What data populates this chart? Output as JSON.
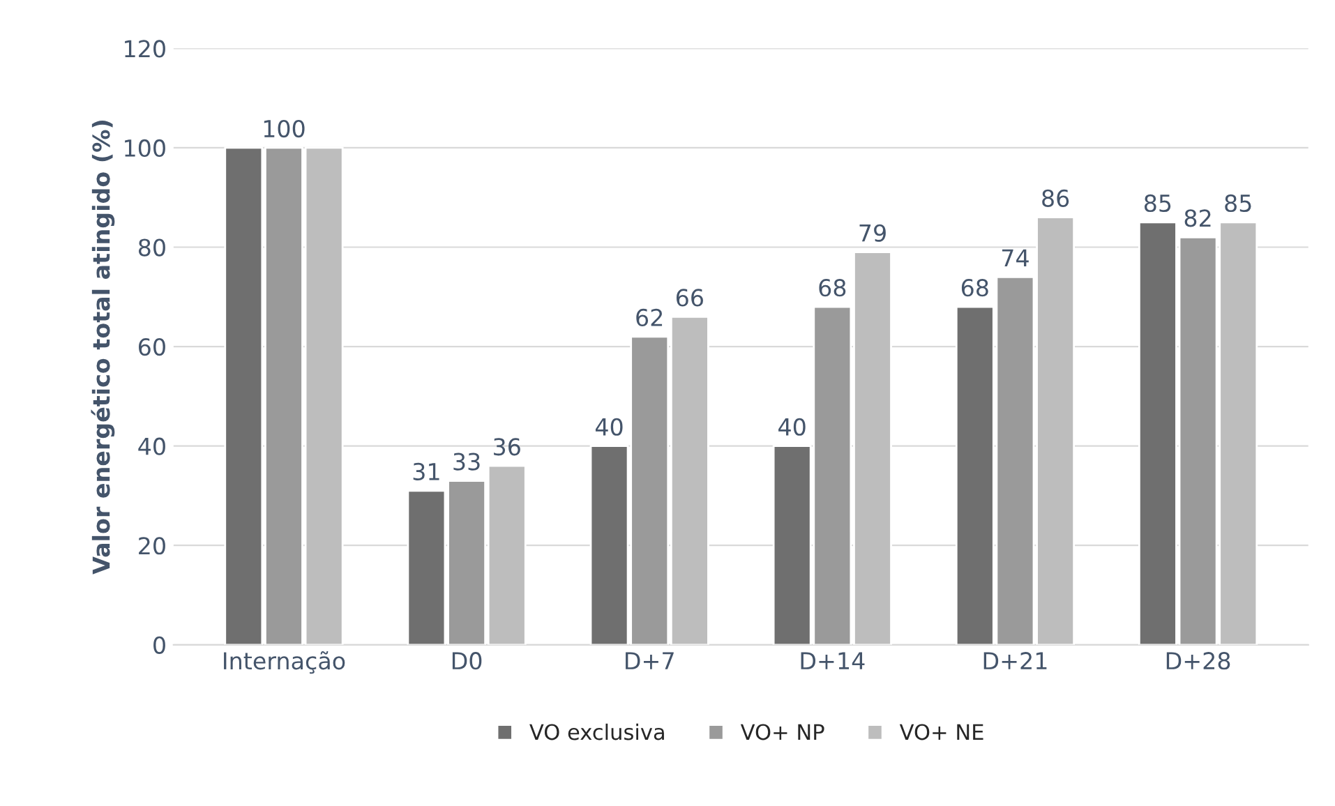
{
  "chart_data": {
    "type": "bar",
    "ylabel": "Valor energético total atingido (%)",
    "categories": [
      "Internação",
      "D0",
      "D+7",
      "D+14",
      "D+21",
      "D+28"
    ],
    "series": [
      {
        "name": "VO exclusiva",
        "color": "#6f6f6f",
        "values": [
          100,
          31,
          40,
          40,
          68,
          85
        ],
        "value_labels": [
          null,
          "31",
          "40",
          "40",
          "68",
          "85"
        ]
      },
      {
        "name": "VO+ NP",
        "color": "#9a9a9a",
        "values": [
          100,
          33,
          62,
          68,
          74,
          82
        ],
        "value_labels": [
          "100",
          "33",
          "62",
          "68",
          "74",
          "82"
        ]
      },
      {
        "name": "VO+ NE",
        "color": "#bdbdbd",
        "values": [
          100,
          36,
          66,
          79,
          86,
          85
        ],
        "value_labels": [
          null,
          "36",
          "66",
          "79",
          "86",
          "85"
        ]
      }
    ],
    "ylim": [
      0,
      120
    ],
    "yticks": [
      0,
      20,
      40,
      60,
      80,
      100,
      120
    ],
    "grid": "y",
    "legend": "bottom"
  }
}
